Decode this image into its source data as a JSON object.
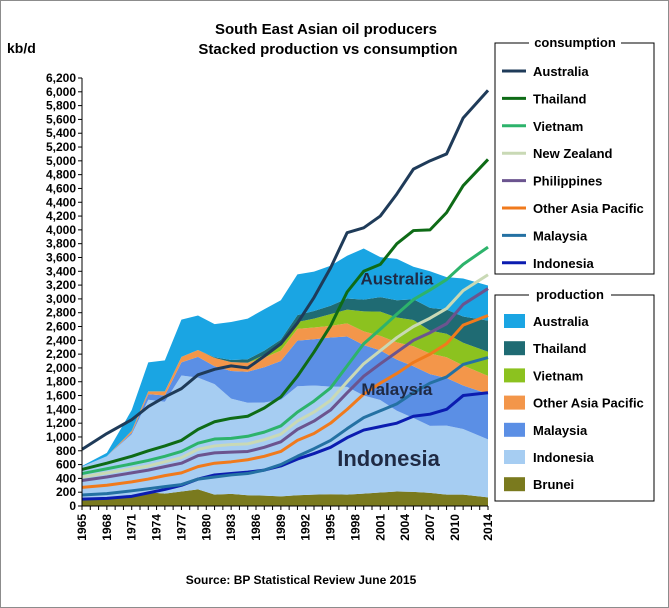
{
  "chart_data": {
    "type": "area",
    "title": "South East Asian oil producers",
    "subtitle": "Stacked production vs consumption",
    "ylabel": "kb/d",
    "source": "Source: BP Statistical Review June 2015",
    "ylim": [
      0,
      6200
    ],
    "y_ticks": [
      "0",
      "200",
      "400",
      "600",
      "800",
      "1,000",
      "1,200",
      "1,400",
      "1,600",
      "1,800",
      "2,000",
      "2,200",
      "2,400",
      "2,600",
      "2,800",
      "3,000",
      "3,200",
      "3,400",
      "3,600",
      "3,800",
      "4,000",
      "4,200",
      "4,400",
      "4,600",
      "4,800",
      "5,000",
      "5,200",
      "5,400",
      "5,600",
      "5,800",
      "6,000",
      "6,200"
    ],
    "x_ticks": [
      "1965",
      "1968",
      "1971",
      "1974",
      "1977",
      "1980",
      "1983",
      "1986",
      "1989",
      "1992",
      "1995",
      "1998",
      "2001",
      "2004",
      "2007",
      "2010",
      "2014"
    ],
    "xlim": [
      1965,
      2014
    ],
    "grid": false,
    "area_labels": [
      {
        "text": "Australia",
        "x": 2003,
        "y": 3210
      },
      {
        "text": "Malaysia",
        "x": 2003,
        "y": 1610
      },
      {
        "text": "Indonesia",
        "x": 2002,
        "y": 580
      }
    ],
    "consumption_legend": {
      "title": "consumption",
      "items": [
        {
          "name": "Australia",
          "color": "#1f3b59"
        },
        {
          "name": "Thailand",
          "color": "#0e6b16"
        },
        {
          "name": "Vietnam",
          "color": "#2db36b"
        },
        {
          "name": "New Zealand",
          "color": "#c9d9b5"
        },
        {
          "name": "Philippines",
          "color": "#6b548f"
        },
        {
          "name": "Other Asia Pacific",
          "color": "#f07a1c"
        },
        {
          "name": "Malaysia",
          "color": "#2471a3"
        },
        {
          "name": "Indonesia",
          "color": "#0b1cb0"
        }
      ]
    },
    "production_legend": {
      "title": "production",
      "items": [
        {
          "name": "Australia",
          "color": "#1aa5e3"
        },
        {
          "name": "Thailand",
          "color": "#1f6b73"
        },
        {
          "name": "Vietnam",
          "color": "#8cc21f"
        },
        {
          "name": "Other Asia Pacific",
          "color": "#f3964a"
        },
        {
          "name": "Malaysia",
          "color": "#5b8fe5"
        },
        {
          "name": "Indonesia",
          "color": "#a6cdf2"
        },
        {
          "name": "Brunei",
          "color": "#7a7a1e"
        }
      ]
    },
    "x": [
      1965,
      1968,
      1971,
      1973,
      1975,
      1977,
      1979,
      1981,
      1983,
      1985,
      1987,
      1989,
      1991,
      1993,
      1995,
      1997,
      1999,
      2001,
      2003,
      2005,
      2007,
      2009,
      2011,
      2014
    ],
    "production": [
      {
        "name": "Brunei",
        "color": "#7a7a1e",
        "values": [
          80,
          120,
          140,
          200,
          180,
          210,
          240,
          165,
          175,
          155,
          150,
          140,
          155,
          165,
          170,
          165,
          180,
          195,
          210,
          205,
          190,
          165,
          165,
          125
        ]
      },
      {
        "name": "Indonesia",
        "color": "#a6cdf2",
        "values": [
          490,
          600,
          900,
          1340,
          1330,
          1680,
          1620,
          1600,
          1380,
          1340,
          1350,
          1400,
          1580,
          1580,
          1560,
          1560,
          1420,
          1340,
          1170,
          1070,
          970,
          1000,
          950,
          840
        ]
      },
      {
        "name": "Malaysia",
        "color": "#5b8fe5",
        "values": [
          0,
          0,
          20,
          80,
          90,
          190,
          300,
          260,
          400,
          450,
          510,
          560,
          660,
          670,
          710,
          730,
          730,
          720,
          740,
          750,
          750,
          690,
          630,
          660
        ]
      },
      {
        "name": "Other Asia Pacific",
        "color": "#f3964a",
        "values": [
          0,
          0,
          30,
          40,
          60,
          80,
          100,
          120,
          130,
          130,
          140,
          150,
          170,
          170,
          170,
          190,
          200,
          210,
          250,
          290,
          300,
          300,
          290,
          260
        ]
      },
      {
        "name": "Vietnam",
        "color": "#8cc21f",
        "values": [
          0,
          0,
          0,
          0,
          0,
          0,
          0,
          0,
          0,
          0,
          40,
          80,
          100,
          130,
          170,
          200,
          290,
          350,
          360,
          380,
          330,
          340,
          330,
          350
        ]
      },
      {
        "name": "Thailand",
        "color": "#1f6b73",
        "values": [
          0,
          0,
          0,
          0,
          0,
          0,
          0,
          10,
          30,
          50,
          60,
          80,
          100,
          110,
          120,
          160,
          170,
          210,
          250,
          300,
          330,
          350,
          380,
          450
        ]
      },
      {
        "name": "Australia",
        "color": "#1aa5e3",
        "values": [
          10,
          50,
          300,
          420,
          450,
          540,
          500,
          480,
          550,
          590,
          600,
          570,
          590,
          570,
          580,
          620,
          740,
          580,
          600,
          470,
          530,
          470,
          550,
          510
        ]
      }
    ],
    "consumption": [
      {
        "name": "Indonesia",
        "color": "#0b1cb0",
        "values": [
          100,
          110,
          140,
          190,
          240,
          300,
          390,
          450,
          470,
          490,
          520,
          580,
          680,
          760,
          850,
          990,
          1100,
          1150,
          1200,
          1300,
          1330,
          1400,
          1600,
          1640
        ]
      },
      {
        "name": "Malaysia",
        "color": "#2471a3",
        "values": [
          160,
          180,
          220,
          250,
          280,
          310,
          390,
          420,
          450,
          470,
          520,
          600,
          720,
          830,
          950,
          1120,
          1280,
          1380,
          1480,
          1640,
          1780,
          1870,
          2050,
          2150
        ]
      },
      {
        "name": "Other Asia Pacific",
        "color": "#f07a1c",
        "values": [
          270,
          300,
          350,
          390,
          440,
          480,
          570,
          620,
          640,
          670,
          720,
          790,
          950,
          1050,
          1200,
          1400,
          1620,
          1780,
          1920,
          2080,
          2200,
          2350,
          2620,
          2760
        ]
      },
      {
        "name": "Philippines",
        "color": "#6b548f",
        "values": [
          370,
          420,
          480,
          520,
          570,
          620,
          730,
          770,
          780,
          790,
          850,
          930,
          1110,
          1230,
          1390,
          1640,
          1880,
          2060,
          2230,
          2400,
          2510,
          2640,
          2920,
          3150
        ]
      },
      {
        "name": "New Zealand",
        "color": "#c9d9b5",
        "values": [
          420,
          480,
          540,
          580,
          640,
          700,
          820,
          870,
          890,
          900,
          960,
          1040,
          1230,
          1360,
          1530,
          1800,
          2060,
          2250,
          2440,
          2600,
          2720,
          2860,
          3120,
          3350
        ]
      },
      {
        "name": "Vietnam",
        "color": "#2db36b",
        "values": [
          470,
          540,
          610,
          660,
          720,
          790,
          910,
          970,
          980,
          1010,
          1070,
          1160,
          1360,
          1520,
          1710,
          2030,
          2350,
          2560,
          2780,
          2990,
          3130,
          3280,
          3500,
          3750
        ]
      },
      {
        "name": "Thailand",
        "color": "#0e6b16",
        "values": [
          530,
          620,
          720,
          800,
          870,
          950,
          1110,
          1220,
          1270,
          1300,
          1420,
          1580,
          1880,
          2230,
          2610,
          3100,
          3400,
          3500,
          3800,
          3990,
          4000,
          4250,
          4640,
          5020
        ]
      },
      {
        "name": "Australia",
        "color": "#1f3b59",
        "values": [
          820,
          1050,
          1250,
          1440,
          1580,
          1700,
          1900,
          1980,
          2030,
          2000,
          2170,
          2350,
          2650,
          3020,
          3450,
          3960,
          4030,
          4200,
          4520,
          4880,
          5000,
          5100,
          5620,
          6020
        ]
      }
    ]
  }
}
